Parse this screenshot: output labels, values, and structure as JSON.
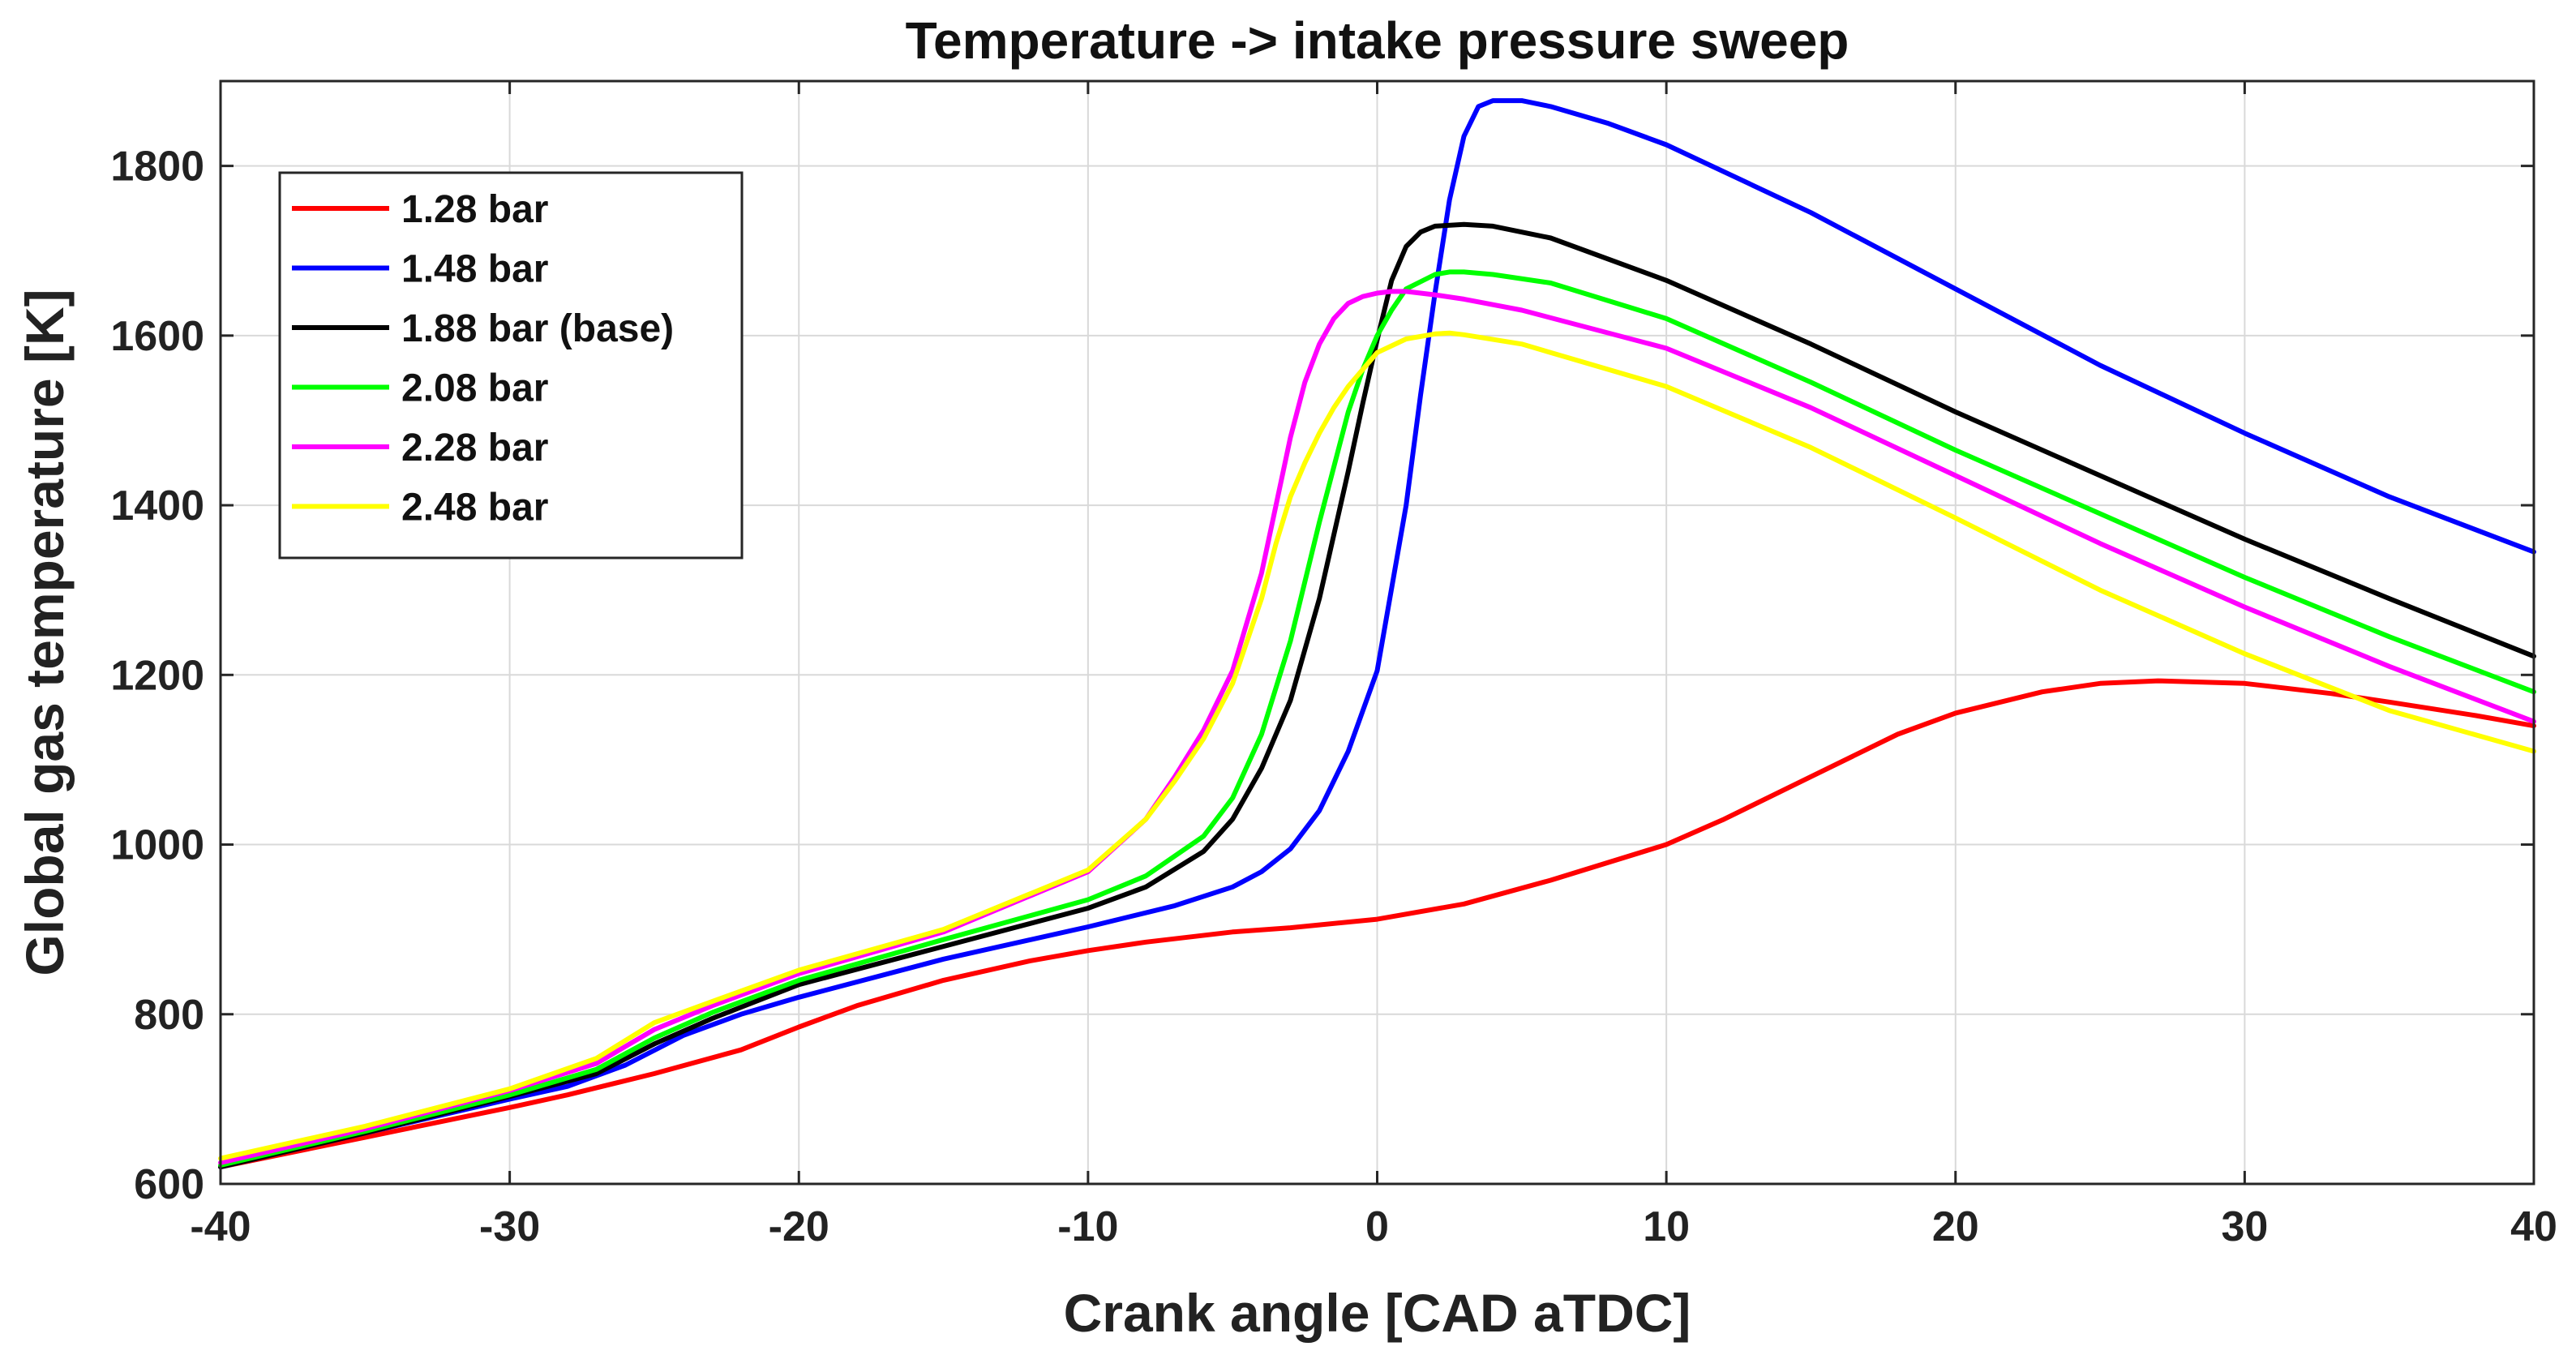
{
  "chart_data": {
    "type": "line",
    "title": "Temperature -> intake pressure sweep",
    "xlabel": "Crank angle [CAD aTDC]",
    "ylabel": "Global gas temperature [K]",
    "xlim": [
      -40,
      40
    ],
    "ylim": [
      600,
      1900
    ],
    "xticks": [
      -40,
      -30,
      -20,
      -10,
      0,
      10,
      20,
      30,
      40
    ],
    "yticks": [
      600,
      800,
      1000,
      1200,
      1400,
      1600,
      1800
    ],
    "grid": true,
    "legend_position": "top-left",
    "series": [
      {
        "name": "1.28 bar",
        "color": "#ff0000",
        "x": [
          -40,
          -35,
          -30,
          -28,
          -25,
          -22,
          -20,
          -18,
          -15,
          -12,
          -10,
          -8,
          -5,
          -3,
          0,
          3,
          6,
          10,
          12,
          15,
          18,
          20,
          23,
          25,
          27,
          30,
          33,
          35,
          38,
          40
        ],
        "y": [
          620,
          655,
          690,
          705,
          730,
          758,
          785,
          810,
          840,
          863,
          875,
          885,
          897,
          902,
          912,
          930,
          958,
          1000,
          1030,
          1080,
          1130,
          1155,
          1180,
          1190,
          1193,
          1190,
          1178,
          1168,
          1152,
          1140
        ]
      },
      {
        "name": "1.48 bar",
        "color": "#0000ff",
        "x": [
          -40,
          -35,
          -30,
          -28,
          -26,
          -24,
          -22,
          -20,
          -15,
          -10,
          -7,
          -5,
          -4,
          -3,
          -2,
          -1,
          0,
          1,
          1.5,
          2,
          2.5,
          3,
          3.5,
          4,
          5,
          6,
          8,
          10,
          15,
          20,
          25,
          30,
          35,
          40
        ],
        "y": [
          620,
          660,
          700,
          715,
          740,
          775,
          800,
          820,
          865,
          903,
          928,
          950,
          968,
          995,
          1040,
          1110,
          1205,
          1400,
          1530,
          1650,
          1760,
          1835,
          1870,
          1877,
          1877,
          1870,
          1850,
          1825,
          1745,
          1655,
          1565,
          1485,
          1410,
          1345
        ]
      },
      {
        "name": "1.88 bar (base)",
        "color": "#000000",
        "x": [
          -40,
          -35,
          -30,
          -27,
          -25,
          -23,
          -20,
          -15,
          -10,
          -8,
          -6,
          -5,
          -4,
          -3,
          -2,
          -1,
          -0.5,
          0,
          0.5,
          1,
          1.5,
          2,
          3,
          4,
          6,
          10,
          15,
          20,
          25,
          30,
          35,
          40
        ],
        "y": [
          620,
          660,
          703,
          730,
          765,
          795,
          835,
          880,
          925,
          950,
          992,
          1030,
          1090,
          1170,
          1290,
          1440,
          1520,
          1595,
          1665,
          1705,
          1722,
          1729,
          1731,
          1729,
          1715,
          1665,
          1590,
          1510,
          1435,
          1360,
          1290,
          1222
        ]
      },
      {
        "name": "2.08 bar",
        "color": "#00ff00",
        "x": [
          -40,
          -35,
          -30,
          -27,
          -25,
          -23,
          -20,
          -15,
          -10,
          -8,
          -6,
          -5,
          -4,
          -3,
          -2,
          -1,
          -0.5,
          0,
          0.5,
          1,
          2,
          2.5,
          3,
          4,
          6,
          10,
          15,
          20,
          25,
          30,
          35,
          40
        ],
        "y": [
          622,
          662,
          705,
          735,
          772,
          802,
          840,
          888,
          935,
          963,
          1010,
          1055,
          1130,
          1240,
          1380,
          1510,
          1560,
          1600,
          1630,
          1655,
          1672,
          1675,
          1675,
          1672,
          1662,
          1620,
          1545,
          1465,
          1390,
          1315,
          1245,
          1180
        ]
      },
      {
        "name": "2.28 bar",
        "color": "#ff00ff",
        "x": [
          -40,
          -35,
          -30,
          -27,
          -25,
          -23,
          -20,
          -15,
          -10,
          -8,
          -7,
          -6,
          -5,
          -4,
          -3.5,
          -3,
          -2.5,
          -2,
          -1.5,
          -1,
          -0.5,
          0,
          0.5,
          1,
          1.5,
          2,
          3,
          5,
          10,
          15,
          20,
          25,
          30,
          35,
          40
        ],
        "y": [
          625,
          665,
          710,
          742,
          782,
          810,
          848,
          897,
          968,
          1030,
          1080,
          1135,
          1205,
          1320,
          1400,
          1480,
          1545,
          1590,
          1620,
          1638,
          1646,
          1650,
          1652,
          1652,
          1650,
          1648,
          1643,
          1630,
          1585,
          1515,
          1435,
          1355,
          1280,
          1210,
          1145
        ]
      },
      {
        "name": "2.48 bar",
        "color": "#ffff00",
        "x": [
          -40,
          -35,
          -30,
          -27,
          -25,
          -23,
          -20,
          -15,
          -10,
          -8,
          -7,
          -6,
          -5,
          -4,
          -3.5,
          -3,
          -2.5,
          -2,
          -1.5,
          -1,
          0,
          1,
          2,
          2.5,
          3,
          5,
          10,
          15,
          20,
          25,
          30,
          35,
          40
        ],
        "y": [
          630,
          668,
          712,
          748,
          790,
          815,
          852,
          900,
          970,
          1030,
          1075,
          1125,
          1190,
          1290,
          1355,
          1410,
          1450,
          1485,
          1515,
          1540,
          1580,
          1596,
          1602,
          1603,
          1601,
          1590,
          1540,
          1468,
          1385,
          1300,
          1225,
          1158,
          1110
        ]
      }
    ]
  }
}
